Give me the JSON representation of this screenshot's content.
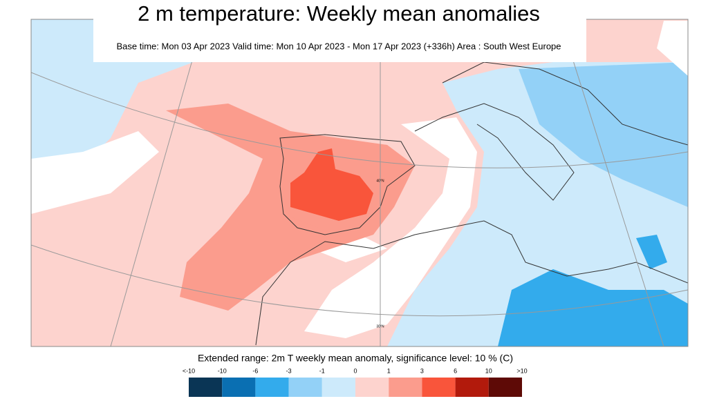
{
  "header": {
    "title": "2 m temperature: Weekly mean anomalies",
    "subtitle": "Base time: Mon 03 Apr 2023 Valid time: Mon 10 Apr 2023 - Mon 17 Apr 2023 (+336h) Area : South West Europe"
  },
  "map": {
    "grid_labels": [
      "40°N",
      "30°N"
    ]
  },
  "legend": {
    "caption": "Extended range: 2m T weekly mean anomaly, significance level: 10 % (C)",
    "labels": [
      "<-10",
      "-10",
      "-6",
      "-3",
      "-1",
      "0",
      "1",
      "3",
      "6",
      "10",
      ">10"
    ],
    "colors": [
      "#0a3555",
      "#0a6fb2",
      "#33abec",
      "#93d1f7",
      "#cdeafb",
      "#fdd3ce",
      "#fb9c8d",
      "#f9553b",
      "#b21a0c",
      "#5e0a06"
    ]
  }
}
